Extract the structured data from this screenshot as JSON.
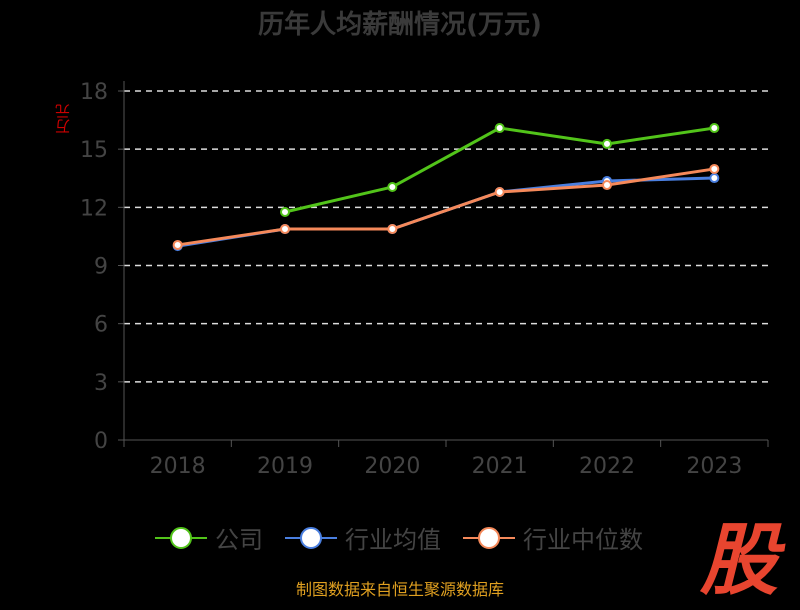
{
  "chart_data": {
    "type": "line",
    "title": "历年人均薪酬情况(万元)",
    "ylabel": "万元",
    "xlabel": "",
    "categories": [
      "2018",
      "2019",
      "2020",
      "2021",
      "2022",
      "2023"
    ],
    "yticks": [
      "0",
      "3",
      "6",
      "9",
      "12",
      "15",
      "18"
    ],
    "ylim": [
      0,
      18
    ],
    "grid": true,
    "legend_position": "bottom",
    "series": [
      {
        "name": "公司",
        "color": "#52c41a",
        "values": [
          null,
          11.76,
          13.05,
          16.09,
          15.27,
          16.09
        ]
      },
      {
        "name": "行业均值",
        "color": "#4a7fe0",
        "values": [
          10.0,
          10.88,
          10.88,
          12.79,
          13.36,
          13.51
        ]
      },
      {
        "name": "行业中位数",
        "color": "#f5895a",
        "values": [
          10.06,
          10.88,
          10.88,
          12.79,
          13.15,
          13.98
        ]
      }
    ]
  },
  "footer": {
    "source": "制图数据来自恒生聚源数据库",
    "logo": "股"
  }
}
